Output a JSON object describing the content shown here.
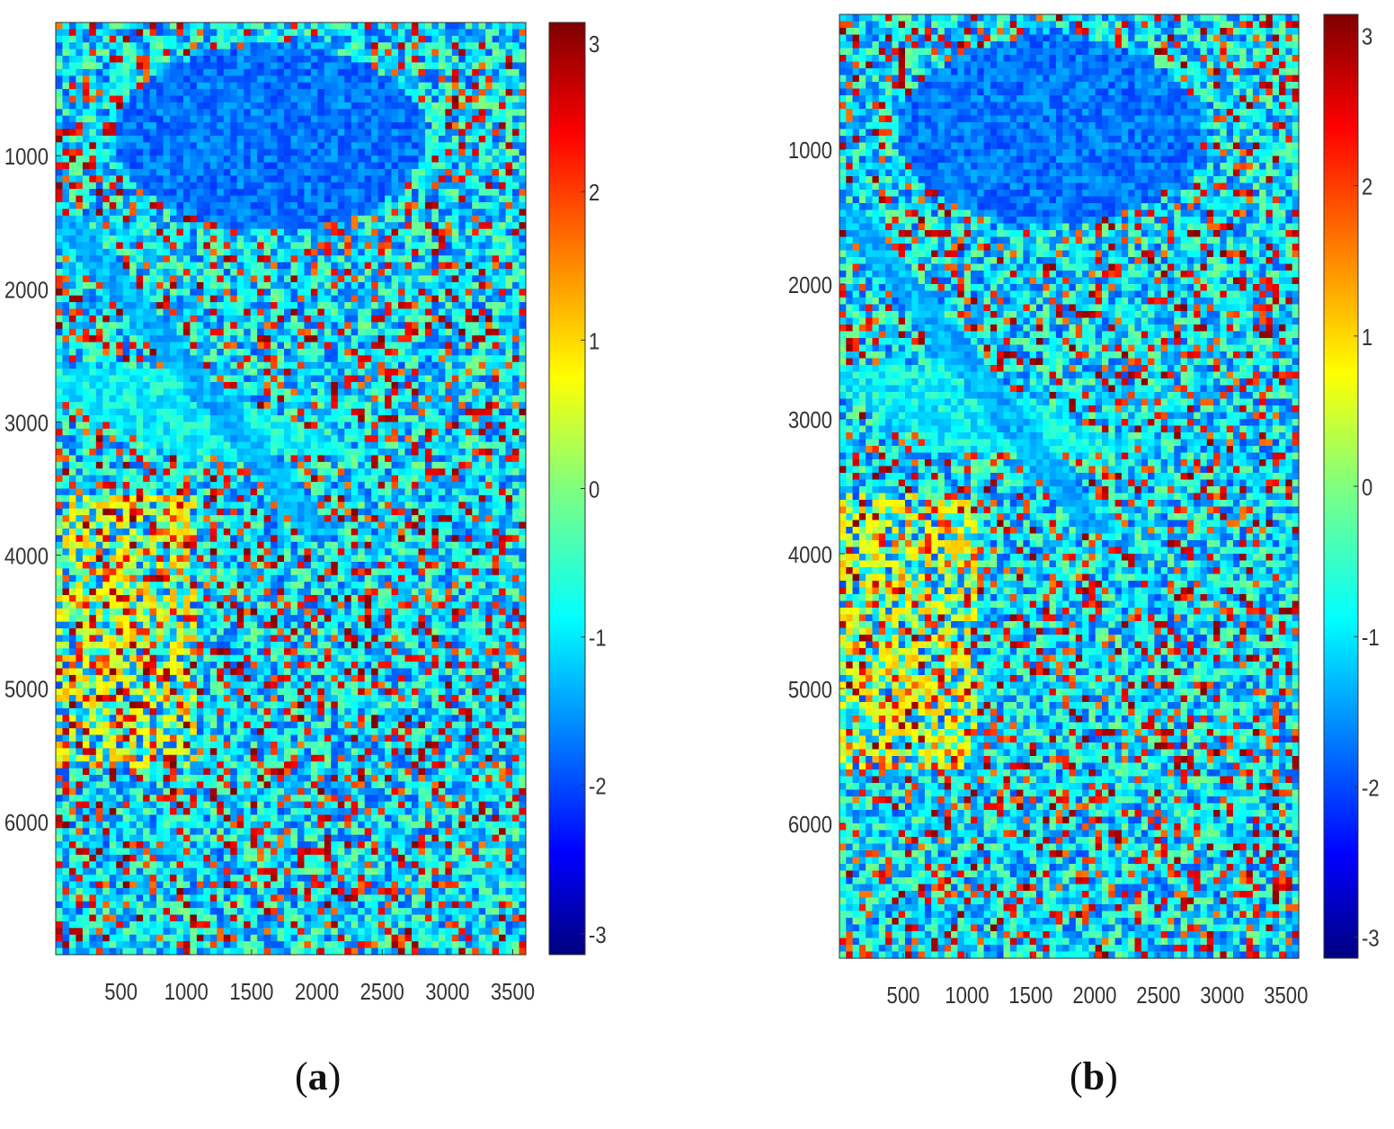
{
  "chart_data": [
    {
      "type": "heatmap",
      "panel_label": "a",
      "xlim": [
        0,
        3600
      ],
      "ylim": [
        0,
        7000
      ],
      "y_reversed": true,
      "x_ticks": [
        500,
        1000,
        1500,
        2000,
        2500,
        3000,
        3500
      ],
      "y_ticks": [
        1000,
        2000,
        3000,
        4000,
        5000,
        6000
      ],
      "colorbar": {
        "colormap": "jet",
        "range": [
          -3.14,
          3.14
        ],
        "ticks": [
          3,
          2,
          1,
          0,
          -1,
          -2,
          -3
        ]
      },
      "grid": false
    },
    {
      "type": "heatmap",
      "panel_label": "b",
      "xlim": [
        0,
        3600
      ],
      "ylim": [
        0,
        7000
      ],
      "y_reversed": true,
      "x_ticks": [
        500,
        1000,
        1500,
        2000,
        2500,
        3000,
        3500
      ],
      "y_ticks": [
        1000,
        2000,
        3000,
        4000,
        5000,
        6000
      ],
      "colorbar": {
        "colormap": "jet",
        "range": [
          -3.14,
          3.14
        ],
        "ticks": [
          3,
          2,
          1,
          0,
          -1,
          -2,
          -3
        ]
      },
      "grid": false
    }
  ]
}
